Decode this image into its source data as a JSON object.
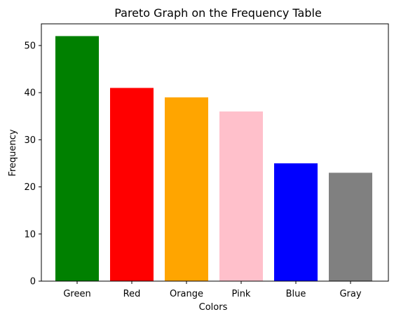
{
  "chart_data": {
    "type": "bar",
    "title": "Pareto Graph on the Frequency Table",
    "xlabel": "Colors",
    "ylabel": "Frequency",
    "categories": [
      "Green",
      "Red",
      "Orange",
      "Pink",
      "Blue",
      "Gray"
    ],
    "values": [
      52,
      41,
      39,
      36,
      25,
      23
    ],
    "colors": [
      "#008000",
      "#ff0000",
      "#ffa500",
      "#ffc0cb",
      "#0000ff",
      "#808080"
    ],
    "ylim": [
      0,
      54.6
    ],
    "yticks": [
      0,
      10,
      20,
      30,
      40,
      50
    ],
    "grid": false,
    "legend": "none"
  }
}
